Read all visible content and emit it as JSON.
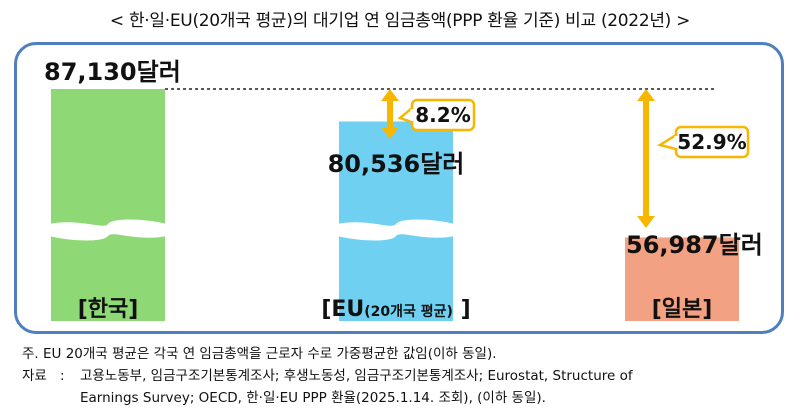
{
  "title": "< 한·일·EU(20개국 평균)의 대기업 연 임금총액(PPP 환율 기준) 비교 (2022년) >",
  "colors": {
    "korea": "#8ed975",
    "eu": "#6fd0f2",
    "japan": "#f2a282",
    "arrow": "#f7b600",
    "frame": "#4f7fbf"
  },
  "chart_data": {
    "type": "bar",
    "title": "< 한·일·EU(20개국 평균)의 대기업 연 임금총액(PPP 환율 기준) 비교 (2022년) >",
    "unit": "달러",
    "categories": [
      "[한국]",
      "[EU(20개국 평균)]",
      "[일본]"
    ],
    "values": [
      87130,
      80536,
      56987
    ],
    "value_labels": [
      "87,130달러",
      "80,536달러",
      "56,987달러"
    ],
    "axis_break": true,
    "annotations": [
      {
        "from": "EU",
        "to": "한국",
        "label": "8.2%"
      },
      {
        "from": "일본",
        "to": "한국",
        "label": "52.9%"
      }
    ],
    "grid": false,
    "legend": "none"
  },
  "footnotes": {
    "note": "주. EU 20개국 평균은 각국 연 임금총액을 근로자 수로 가중평균한 값임(이하 동일).",
    "source_label": "자료",
    "source_line1": "고용노동부, 임금구조기본통계조사; 후생노동성, 임금구조기본통계조사; Eurostat, Structure of",
    "source_line2": "Earnings Survey; OECD, 한·일·EU PPP 환율(2025.1.14. 조회), (이하 동일)."
  }
}
